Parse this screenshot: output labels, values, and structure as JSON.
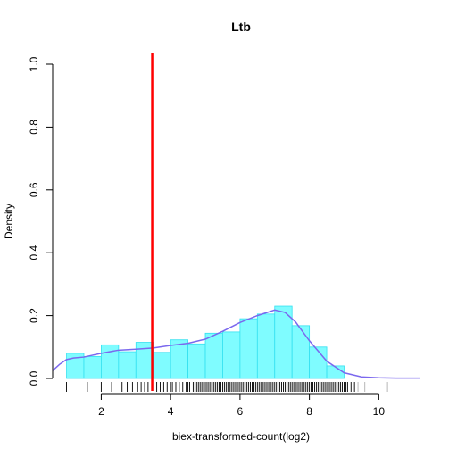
{
  "chart_data": {
    "type": "histogram",
    "title": "Ltb",
    "xlabel": "biex-transformed-count(log2)",
    "ylabel": "Density",
    "xlim": [
      0.6,
      11.2
    ],
    "ylim": [
      0,
      1.0
    ],
    "x_ticks": [
      "2",
      "4",
      "6",
      "8",
      "10"
    ],
    "x_tick_values": [
      2,
      4,
      6,
      8,
      10
    ],
    "y_ticks": [
      "0.0",
      "0.2",
      "0.4",
      "0.6",
      "0.8",
      "1.0"
    ],
    "y_tick_values": [
      0,
      0.2,
      0.4,
      0.6,
      0.8,
      1.0
    ],
    "bin_width": 0.5,
    "bars": [
      {
        "x0": 1.0,
        "density": 0.08
      },
      {
        "x0": 1.5,
        "density": 0.07
      },
      {
        "x0": 2.0,
        "density": 0.107
      },
      {
        "x0": 2.5,
        "density": 0.085
      },
      {
        "x0": 3.0,
        "density": 0.115
      },
      {
        "x0": 3.5,
        "density": 0.083
      },
      {
        "x0": 4.0,
        "density": 0.123
      },
      {
        "x0": 4.5,
        "density": 0.11
      },
      {
        "x0": 5.0,
        "density": 0.144
      },
      {
        "x0": 5.5,
        "density": 0.148
      },
      {
        "x0": 6.0,
        "density": 0.19
      },
      {
        "x0": 6.5,
        "density": 0.205
      },
      {
        "x0": 7.0,
        "density": 0.23
      },
      {
        "x0": 7.5,
        "density": 0.168
      },
      {
        "x0": 8.0,
        "density": 0.1
      },
      {
        "x0": 8.5,
        "density": 0.04
      }
    ],
    "density_curve": {
      "x": [
        0.6,
        0.8,
        1.0,
        1.2,
        1.5,
        2.0,
        2.5,
        3.0,
        3.5,
        4.0,
        4.5,
        5.0,
        5.5,
        6.0,
        6.5,
        7.0,
        7.3,
        7.6,
        8.0,
        8.5,
        9.0,
        9.5,
        10.0,
        10.5,
        11.2
      ],
      "y": [
        0.025,
        0.045,
        0.06,
        0.065,
        0.068,
        0.08,
        0.09,
        0.093,
        0.097,
        0.105,
        0.112,
        0.125,
        0.15,
        0.178,
        0.2,
        0.218,
        0.21,
        0.18,
        0.12,
        0.055,
        0.018,
        0.005,
        0.002,
        0.001,
        0.001
      ]
    },
    "vline_x": 3.47,
    "colors": {
      "bar_fill": "#7ffcff",
      "bar_edge": "#33e0f0",
      "curve": "#7b68ee",
      "vline": "#ff0000",
      "axis": "#000000"
    },
    "rug": [
      1.0,
      1.6,
      2.0,
      2.3,
      2.6,
      2.75,
      2.9,
      3.05,
      3.15,
      3.25,
      3.35,
      3.6,
      3.7,
      3.8,
      3.9,
      4.0,
      4.05,
      4.15,
      4.25,
      4.35,
      4.45,
      4.5,
      4.55,
      4.65,
      4.7,
      4.75,
      4.8,
      4.85,
      4.9,
      4.95,
      5.0,
      5.05,
      5.1,
      5.15,
      5.2,
      5.25,
      5.3,
      5.35,
      5.4,
      5.45,
      5.5,
      5.55,
      5.6,
      5.65,
      5.7,
      5.75,
      5.8,
      5.85,
      5.9,
      5.95,
      6.0,
      6.05,
      6.1,
      6.15,
      6.2,
      6.25,
      6.3,
      6.35,
      6.4,
      6.45,
      6.5,
      6.55,
      6.6,
      6.65,
      6.7,
      6.75,
      6.8,
      6.85,
      6.9,
      6.95,
      7.0,
      7.05,
      7.1,
      7.15,
      7.2,
      7.25,
      7.3,
      7.35,
      7.4,
      7.45,
      7.5,
      7.55,
      7.6,
      7.65,
      7.7,
      7.75,
      7.8,
      7.85,
      7.9,
      7.95,
      8.0,
      8.05,
      8.1,
      8.15,
      8.2,
      8.25,
      8.3,
      8.35,
      8.4,
      8.45,
      8.5,
      8.55,
      8.6,
      8.65,
      8.7,
      8.75,
      8.8,
      8.85,
      8.9,
      8.95,
      9.0,
      9.05,
      9.1,
      9.2,
      9.3,
      9.4,
      9.6,
      10.25
    ]
  }
}
